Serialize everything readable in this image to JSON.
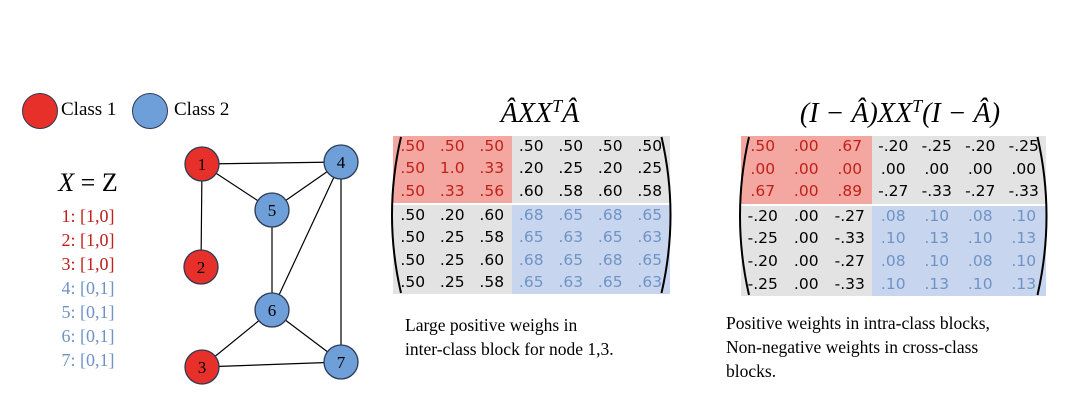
{
  "legend": {
    "class1_label": "Class 1",
    "class2_label": "Class 2",
    "class1_color": "#e8302a",
    "class2_color": "#6f9fd8"
  },
  "features": {
    "title_lhs": "X",
    "title_eq": " = ",
    "title_rhs": "Z",
    "items": [
      {
        "text": "1: [1,0]",
        "class": 1
      },
      {
        "text": "2: [1,0]",
        "class": 1
      },
      {
        "text": "3: [1,0]",
        "class": 1
      },
      {
        "text": "4: [0,1]",
        "class": 2
      },
      {
        "text": "5: [0,1]",
        "class": 2
      },
      {
        "text": "6: [0,1]",
        "class": 2
      },
      {
        "text": "7: [0,1]",
        "class": 2
      }
    ]
  },
  "graph": {
    "nodes": [
      {
        "label": "1",
        "class": 1
      },
      {
        "label": "2",
        "class": 1
      },
      {
        "label": "3",
        "class": 1
      },
      {
        "label": "4",
        "class": 2
      },
      {
        "label": "5",
        "class": 2
      },
      {
        "label": "6",
        "class": 2
      },
      {
        "label": "7",
        "class": 2
      }
    ],
    "edges": [
      [
        "1",
        "2"
      ],
      [
        "1",
        "4"
      ],
      [
        "1",
        "5"
      ],
      [
        "4",
        "5"
      ],
      [
        "4",
        "6"
      ],
      [
        "4",
        "7"
      ],
      [
        "5",
        "6"
      ],
      [
        "6",
        "3"
      ],
      [
        "6",
        "7"
      ],
      [
        "3",
        "7"
      ]
    ]
  },
  "matrix1": {
    "title": "ÂXX",
    "title_sup": "T",
    "title_tail": "Â",
    "rows": [
      [
        ".50",
        ".50",
        ".50",
        ".50",
        ".50",
        ".50",
        ".50"
      ],
      [
        ".50",
        "1.0",
        ".33",
        ".20",
        ".25",
        ".20",
        ".25"
      ],
      [
        ".50",
        ".33",
        ".56",
        ".60",
        ".58",
        ".60",
        ".58"
      ],
      [
        ".50",
        ".20",
        ".60",
        ".68",
        ".65",
        ".68",
        ".65"
      ],
      [
        ".50",
        ".25",
        ".58",
        ".65",
        ".63",
        ".65",
        ".63"
      ],
      [
        ".50",
        ".25",
        ".60",
        ".68",
        ".65",
        ".68",
        ".65"
      ],
      [
        ".50",
        ".25",
        ".58",
        ".65",
        ".63",
        ".65",
        ".63"
      ]
    ],
    "caption_lines": [
      "Large positive weighs in",
      "inter-class block for node 1,3."
    ]
  },
  "matrix2": {
    "title": "(I − Â)XX",
    "title_sup": "T",
    "title_tail": "(I − Â)",
    "rows": [
      [
        ".50",
        ".00",
        ".67",
        "-.20",
        "-.25",
        "-.20",
        "-.25"
      ],
      [
        ".00",
        ".00",
        ".00",
        ".00",
        ".00",
        ".00",
        ".00"
      ],
      [
        ".67",
        ".00",
        ".89",
        "-.27",
        "-.33",
        "-.27",
        "-.33"
      ],
      [
        "-.20",
        ".00",
        "-.27",
        ".08",
        ".10",
        ".08",
        ".10"
      ],
      [
        "-.25",
        ".00",
        "-.33",
        ".10",
        ".13",
        ".10",
        ".13"
      ],
      [
        "-.20",
        ".00",
        "-.27",
        ".08",
        ".10",
        ".08",
        ".10"
      ],
      [
        "-.25",
        ".00",
        "-.33",
        ".10",
        ".13",
        ".10",
        ".13"
      ]
    ],
    "caption_lines": [
      "Positive weights in intra-class blocks,",
      "Non-negative weights in cross-class",
      "blocks."
    ]
  },
  "colors": {
    "red_block": "#f4a6a0",
    "blue_block": "#c7d6ee",
    "gray_block": "#e3e3e3",
    "red_text": "#c0201a",
    "blue_text": "#6f93c6",
    "node_stroke": "#2b3a55"
  }
}
